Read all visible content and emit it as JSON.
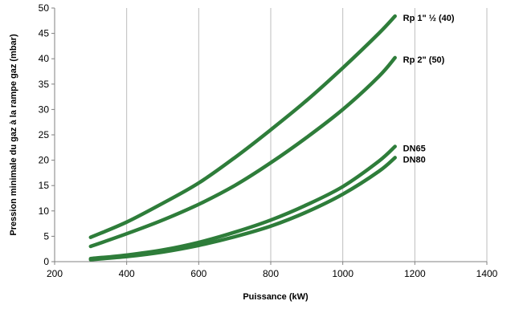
{
  "chart_data": {
    "type": "line",
    "title": "",
    "xlabel": "Puissance (kW)",
    "ylabel": "Pression minimale du gaz à la rampe gaz (mbar)",
    "xlim": [
      200,
      1400
    ],
    "ylim": [
      0,
      50
    ],
    "xticks": [
      200,
      400,
      600,
      800,
      1000,
      1200,
      1400
    ],
    "yticks": [
      0,
      5,
      10,
      15,
      20,
      25,
      30,
      35,
      40,
      45,
      50
    ],
    "grid": "vertical",
    "legend": "inline labels at line ends",
    "line_color": "#2e7d3a",
    "series": [
      {
        "name": "Rp 1\" ½ (40)",
        "x": [
          300,
          400,
          500,
          600,
          700,
          800,
          900,
          1000,
          1100,
          1145
        ],
        "y": [
          4.8,
          7.8,
          11.5,
          15.5,
          20.5,
          26.0,
          31.8,
          38.2,
          45.0,
          48.4
        ]
      },
      {
        "name": "Rp 2\" (50)",
        "x": [
          300,
          400,
          500,
          600,
          700,
          800,
          900,
          1000,
          1100,
          1145
        ],
        "y": [
          3.0,
          5.5,
          8.2,
          11.3,
          15.0,
          19.5,
          24.5,
          30.0,
          36.5,
          40.2
        ]
      },
      {
        "name": "DN65",
        "x": [
          300,
          400,
          500,
          600,
          700,
          800,
          900,
          1000,
          1100,
          1145
        ],
        "y": [
          0.6,
          1.3,
          2.3,
          3.8,
          5.8,
          8.2,
          11.2,
          14.8,
          19.8,
          22.7
        ]
      },
      {
        "name": "DN80",
        "x": [
          300,
          400,
          500,
          600,
          700,
          800,
          900,
          1000,
          1100,
          1145
        ],
        "y": [
          0.4,
          1.0,
          1.9,
          3.2,
          4.9,
          7.0,
          9.8,
          13.3,
          17.8,
          20.5
        ]
      }
    ]
  }
}
